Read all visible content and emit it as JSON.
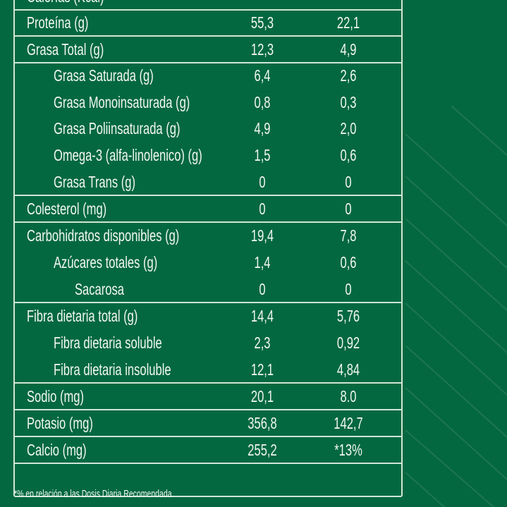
{
  "colors": {
    "background": "#036840",
    "border": "#cfe6d6",
    "text": "#f2f7f2"
  },
  "rows": [
    {
      "label": "Calorías (Kcal)",
      "v1": "",
      "v2": "",
      "indent": 0
    },
    {
      "label": "Proteína (g)",
      "v1": "55,3",
      "v2": "22,1",
      "indent": 0
    },
    {
      "label": "Grasa Total (g)",
      "v1": "12,3",
      "v2": "4,9",
      "indent": 0
    },
    {
      "label": "Grasa Saturada (g)",
      "v1": "6,4",
      "v2": "2,6",
      "indent": 1
    },
    {
      "label": "Grasa Monoinsaturada (g)",
      "v1": "0,8",
      "v2": "0,3",
      "indent": 1
    },
    {
      "label": "Grasa Poliinsaturada (g)",
      "v1": "4,9",
      "v2": "2,0",
      "indent": 1
    },
    {
      "label": "Omega-3 (alfa-linolenico) (g)",
      "v1": "1,5",
      "v2": "0,6",
      "indent": 1
    },
    {
      "label": "Grasa Trans (g)",
      "v1": "0",
      "v2": "0",
      "indent": 1
    },
    {
      "label": "Colesterol (mg)",
      "v1": "0",
      "v2": "0",
      "indent": 0
    },
    {
      "label": "Carbohidratos disponibles (g)",
      "v1": "19,4",
      "v2": "7,8",
      "indent": 0
    },
    {
      "label": "Azúcares totales (g)",
      "v1": "1,4",
      "v2": "0,6",
      "indent": 1
    },
    {
      "label": "Sacarosa",
      "v1": "0",
      "v2": "0",
      "indent": 2
    },
    {
      "label": "Fibra dietaria total (g)",
      "v1": "14,4",
      "v2": "5,76",
      "indent": 0
    },
    {
      "label": "Fibra dietaria soluble",
      "v1": "2,3",
      "v2": "0,92",
      "indent": 1
    },
    {
      "label": "Fibra dietaria insoluble",
      "v1": "12,1",
      "v2": "4,84",
      "indent": 1
    },
    {
      "label": "Sodio (mg)",
      "v1": "20,1",
      "v2": "8.0",
      "indent": 0
    },
    {
      "label": "Potasio (mg)",
      "v1": "356,8",
      "v2": "142,7",
      "indent": 0
    },
    {
      "label": "Calcio (mg)",
      "v1": "255,2",
      "v2": "*13%",
      "indent": 0
    }
  ],
  "footnote": "*% en relación a las Dosis Diaria Recomendada"
}
